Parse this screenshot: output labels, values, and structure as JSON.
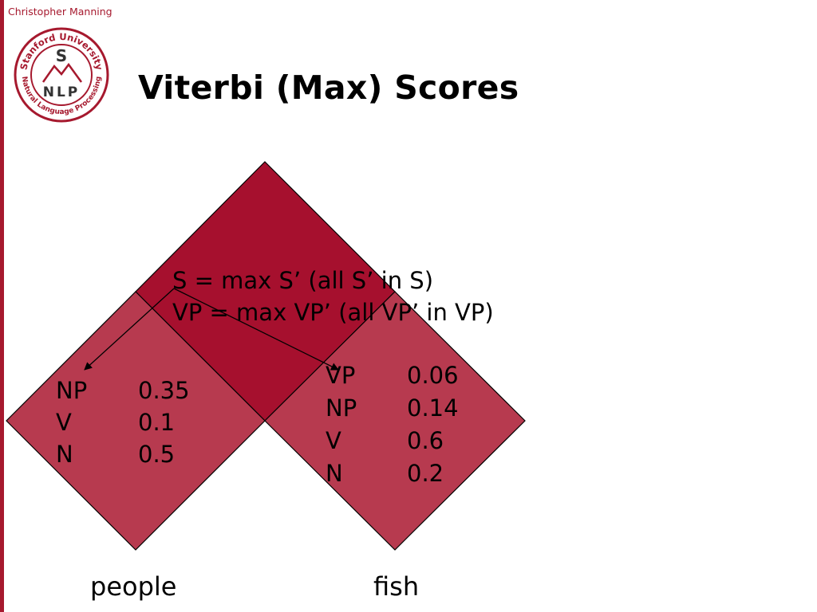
{
  "header": {
    "author": "Christopher Manning",
    "title": "Viterbi (Max) Scores",
    "logo": {
      "ring_text_top": "Stanford University",
      "ring_text_bottom": "Natural Language Processing",
      "center_letter": "S",
      "center_acronym": "NLP"
    }
  },
  "formulas": {
    "line1": "S = max S’ (all S’ in S)",
    "line2": "VP = max VP’ (all VP’ in VP)"
  },
  "cells": {
    "left": {
      "rows": [
        {
          "label": "NP",
          "score": "0.35"
        },
        {
          "label": "V",
          "score": "0.1"
        },
        {
          "label": "N",
          "score": "0.5"
        }
      ]
    },
    "right": {
      "rows": [
        {
          "label": "VP",
          "score": "0.06"
        },
        {
          "label": "NP",
          "score": "0.14"
        },
        {
          "label": "V",
          "score": "0.6"
        },
        {
          "label": "N",
          "score": "0.2"
        }
      ]
    }
  },
  "words": {
    "left": "people",
    "right": "fish"
  },
  "colors": {
    "top_cell": "#a6102e",
    "lower_cells": "#b73a4f",
    "accent": "#a6192e"
  }
}
